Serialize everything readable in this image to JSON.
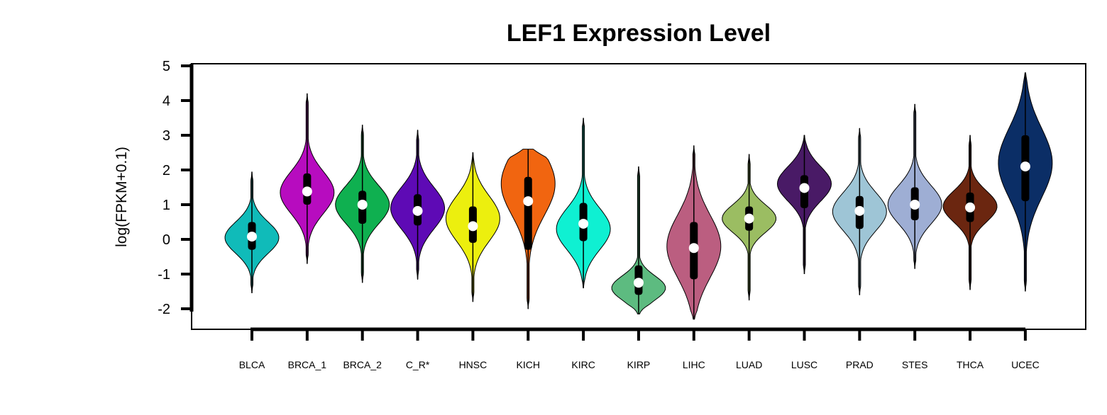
{
  "chart_data": {
    "type": "violin",
    "title": "LEF1 Expression Level",
    "xlabel": "",
    "ylabel": "log(FPKM+0.1)",
    "ylim": [
      -2,
      5
    ],
    "yticks": [
      -2,
      -1,
      0,
      1,
      2,
      3,
      4,
      5
    ],
    "grid": false,
    "legend": "none",
    "categories": [
      "BLCA",
      "BRCA_1",
      "BRCA_2",
      "C_R*",
      "HNSC",
      "KICH",
      "KIRC",
      "KIRP",
      "LIHC",
      "LUAD",
      "LUSC",
      "PRAD",
      "STES",
      "THCA",
      "UCEC"
    ],
    "series": [
      {
        "category": "BLCA",
        "color": "#10bbb9",
        "min": -1.55,
        "q1": -0.3,
        "median": 0.08,
        "q3": 0.5,
        "max": 1.95,
        "mode": 0.05,
        "spread": 0.45
      },
      {
        "category": "BRCA_1",
        "color": "#b70cbf",
        "min": -0.7,
        "q1": 1.0,
        "median": 1.38,
        "q3": 1.9,
        "max": 4.2,
        "mode": 1.35,
        "spread": 0.6
      },
      {
        "category": "BRCA_2",
        "color": "#0fb050",
        "min": -1.25,
        "q1": 0.45,
        "median": 1.0,
        "q3": 1.4,
        "max": 3.3,
        "mode": 1.0,
        "spread": 0.55
      },
      {
        "category": "C_R*",
        "color": "#5e0ab5",
        "min": -1.15,
        "q1": 0.4,
        "median": 0.82,
        "q3": 1.3,
        "max": 3.15,
        "mode": 0.9,
        "spread": 0.6
      },
      {
        "category": "HNSC",
        "color": "#ecef0e",
        "min": -1.8,
        "q1": -0.1,
        "median": 0.38,
        "q3": 0.95,
        "max": 2.5,
        "mode": 0.6,
        "spread": 0.65
      },
      {
        "category": "KICH",
        "color": "#f16510",
        "min": -2.0,
        "q1": -0.3,
        "median": 1.1,
        "q3": 1.8,
        "max": 2.6,
        "mode": 1.6,
        "spread": 0.9
      },
      {
        "category": "KIRC",
        "color": "#0ff0d2",
        "min": -1.4,
        "q1": -0.05,
        "median": 0.45,
        "q3": 1.05,
        "max": 3.5,
        "mode": 0.3,
        "spread": 0.6
      },
      {
        "category": "KIRP",
        "color": "#5dbb80",
        "min": -2.15,
        "q1": -1.6,
        "median": -1.25,
        "q3": -0.75,
        "max": 2.1,
        "mode": -1.4,
        "spread": 0.35
      },
      {
        "category": "LIHC",
        "color": "#bb5e80",
        "min": -2.3,
        "q1": -1.15,
        "median": -0.25,
        "q3": 0.5,
        "max": 2.7,
        "mode": -0.2,
        "spread": 0.9
      },
      {
        "category": "LUAD",
        "color": "#9bbd62",
        "min": -1.75,
        "q1": 0.25,
        "median": 0.6,
        "q3": 0.95,
        "max": 2.45,
        "mode": 0.6,
        "spread": 0.4
      },
      {
        "category": "LUSC",
        "color": "#491a66",
        "min": -1.0,
        "q1": 0.9,
        "median": 1.48,
        "q3": 1.85,
        "max": 3.0,
        "mode": 1.6,
        "spread": 0.5
      },
      {
        "category": "PRAD",
        "color": "#9ec5d6",
        "min": -1.6,
        "q1": 0.3,
        "median": 0.82,
        "q3": 1.25,
        "max": 3.2,
        "mode": 0.8,
        "spread": 0.55
      },
      {
        "category": "STES",
        "color": "#9eaed4",
        "min": -0.85,
        "q1": 0.55,
        "median": 1.0,
        "q3": 1.5,
        "max": 3.9,
        "mode": 1.0,
        "spread": 0.55
      },
      {
        "category": "THCA",
        "color": "#6b2610",
        "min": -1.45,
        "q1": 0.5,
        "median": 0.92,
        "q3": 1.35,
        "max": 3.0,
        "mode": 0.95,
        "spread": 0.45
      },
      {
        "category": "UCEC",
        "color": "#0b2e66",
        "min": -1.5,
        "q1": 1.1,
        "median": 2.1,
        "q3": 3.0,
        "max": 4.8,
        "mode": 2.2,
        "spread": 1.0
      }
    ]
  }
}
